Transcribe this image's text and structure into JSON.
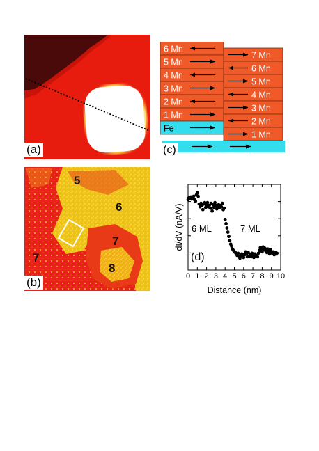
{
  "panels": {
    "a": {
      "label": "(a)"
    },
    "b": {
      "label": "(b)",
      "numbers": [
        "5",
        "6",
        "7",
        "7",
        "8"
      ]
    },
    "c": {
      "label": "(c)",
      "left_labels": [
        "6 Mn",
        "5 Mn",
        "4 Mn",
        "3 Mn",
        "2 Mn",
        "1 Mn",
        "Fe"
      ],
      "right_labels": [
        "7 Mn",
        "6 Mn",
        "5 Mn",
        "4 Mn",
        "3 Mn",
        "2 Mn",
        "1 Mn"
      ],
      "left_arrows": [
        "left",
        "right",
        "left",
        "right",
        "left",
        "right",
        "right"
      ],
      "right_arrows": [
        "right",
        "left",
        "right",
        "left",
        "right",
        "left",
        "right"
      ],
      "colors": {
        "mn": "#f05a28",
        "fe": "#33ddee",
        "border": "#7a2a10"
      }
    },
    "d": {
      "label": "(d)"
    }
  },
  "chart_data": {
    "type": "scatter",
    "title": "",
    "xlabel": "Distance (nm)",
    "ylabel": "dI/dV (nA/V)",
    "xlim": [
      0,
      10
    ],
    "xticks": [
      "0",
      "1",
      "2",
      "3",
      "4",
      "5",
      "6",
      "7",
      "8",
      "9",
      "10"
    ],
    "annotations": [
      "6 ML",
      "7 ML"
    ],
    "y_tick_labels_shown": false,
    "series": [
      {
        "x": [
          0.0,
          0.1,
          0.2,
          0.3,
          0.4,
          0.5,
          0.6,
          0.7,
          0.8,
          0.9,
          1.0,
          1.1,
          1.2,
          1.3,
          1.4,
          1.5,
          1.6,
          1.7,
          1.8,
          1.9,
          2.0,
          2.1,
          2.2,
          2.3,
          2.4,
          2.5,
          2.6,
          2.7,
          2.8,
          2.9,
          3.0,
          3.1,
          3.2,
          3.3,
          3.4,
          3.5,
          3.6,
          3.7,
          3.8,
          3.9,
          4.0,
          4.1,
          4.2,
          4.3,
          4.4,
          4.5,
          4.6,
          4.7,
          4.8,
          4.9,
          5.0,
          5.1,
          5.2,
          5.3,
          5.4,
          5.5,
          5.6,
          5.7,
          5.8,
          5.9,
          6.0,
          6.1,
          6.2,
          6.3,
          6.4,
          6.5,
          6.6,
          6.7,
          6.8,
          6.9,
          7.0,
          7.1,
          7.2,
          7.3,
          7.4,
          7.5,
          7.6,
          7.7,
          7.8,
          7.9,
          8.0,
          8.1,
          8.2,
          8.3,
          8.4,
          8.5,
          8.6,
          8.7,
          8.8,
          8.9,
          9.0,
          9.1,
          9.2,
          9.3,
          9.4,
          9.5,
          9.6
        ],
        "y": [
          0.9,
          0.93,
          0.92,
          0.94,
          0.91,
          0.93,
          0.95,
          0.9,
          0.88,
          0.97,
          1.0,
          0.95,
          0.84,
          0.8,
          0.85,
          0.82,
          0.76,
          0.84,
          0.86,
          0.79,
          0.83,
          0.86,
          0.8,
          0.82,
          0.78,
          0.85,
          0.74,
          0.83,
          0.79,
          0.86,
          0.82,
          0.77,
          0.81,
          0.83,
          0.79,
          0.82,
          0.8,
          0.85,
          0.76,
          0.78,
          0.62,
          0.56,
          0.5,
          0.44,
          0.38,
          0.32,
          0.27,
          0.24,
          0.2,
          0.18,
          0.16,
          0.15,
          0.13,
          0.11,
          0.14,
          0.1,
          0.07,
          0.1,
          0.13,
          0.09,
          0.08,
          0.12,
          0.16,
          0.13,
          0.09,
          0.15,
          0.1,
          0.12,
          0.09,
          0.14,
          0.11,
          0.08,
          0.13,
          0.1,
          0.11,
          0.09,
          0.14,
          0.18,
          0.22,
          0.2,
          0.16,
          0.23,
          0.19,
          0.21,
          0.17,
          0.15,
          0.2,
          0.17,
          0.13,
          0.19,
          0.15,
          0.14,
          0.16,
          0.12,
          0.15,
          0.13,
          0.14
        ]
      }
    ]
  }
}
